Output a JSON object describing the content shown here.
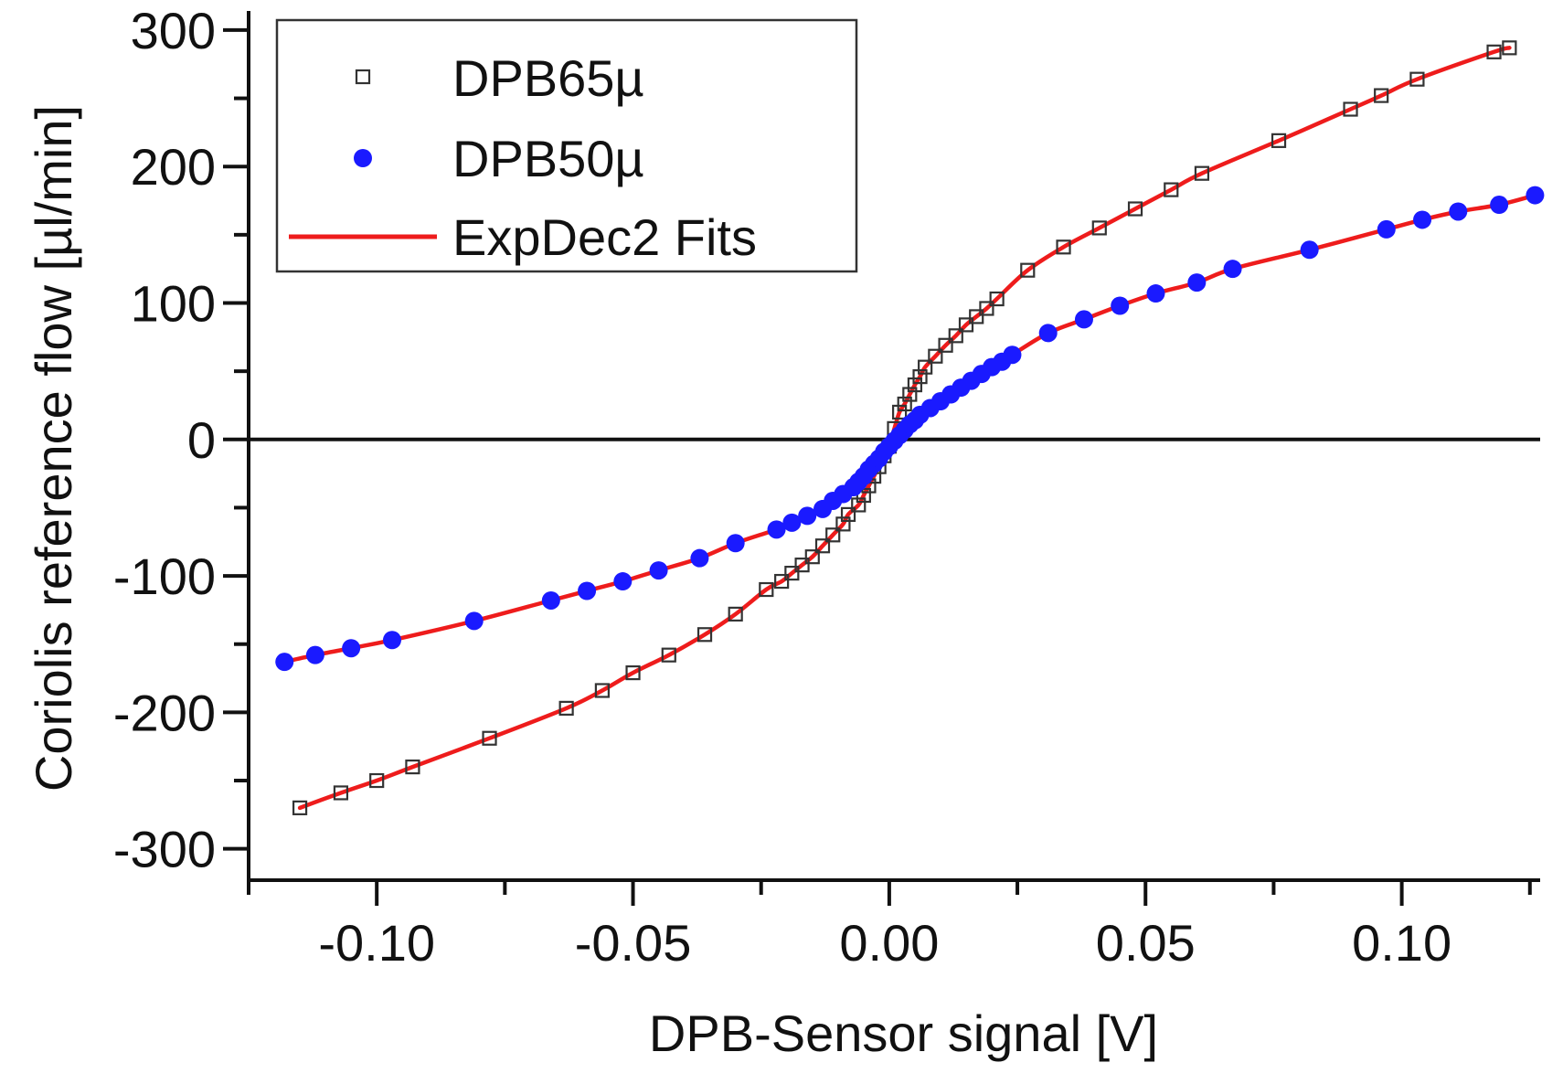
{
  "chart_data": {
    "type": "scatter",
    "title": "",
    "xlabel": "DPB-Sensor signal [V]",
    "ylabel": "Coriolis reference flow [µl/min]",
    "xlim": [
      -0.125,
      0.127
    ],
    "ylim": [
      -323,
      310
    ],
    "xticks": [
      -0.1,
      -0.05,
      0.0,
      0.05,
      0.1
    ],
    "xtick_labels": [
      "-0.10",
      "-0.05",
      "0.00",
      "0.05",
      "0.10"
    ],
    "yticks": [
      -300,
      -200,
      -100,
      0,
      100,
      200,
      300
    ],
    "ytick_labels": [
      "-300",
      "-200",
      "-100",
      "0",
      "100",
      "200",
      "300"
    ],
    "grid": false,
    "zero_line": true,
    "legend_position": "top-left",
    "series": [
      {
        "name": "DPB65µ",
        "marker": "open-square",
        "color": "#333333",
        "x": [
          -0.115,
          -0.107,
          -0.1,
          -0.093,
          -0.078,
          -0.063,
          -0.056,
          -0.05,
          -0.043,
          -0.036,
          -0.03,
          -0.024,
          -0.021,
          -0.019,
          -0.017,
          -0.015,
          -0.013,
          -0.011,
          -0.009,
          -0.008,
          -0.006,
          -0.005,
          -0.004,
          -0.003,
          -0.002,
          -0.001,
          0.0,
          0.001,
          0.002,
          0.003,
          0.004,
          0.005,
          0.006,
          0.007,
          0.009,
          0.011,
          0.013,
          0.015,
          0.017,
          0.019,
          0.021,
          0.027,
          0.034,
          0.041,
          0.048,
          0.055,
          0.061,
          0.076,
          0.09,
          0.096,
          0.103,
          0.118,
          0.121
        ],
        "y": [
          -270,
          -259,
          -250,
          -240,
          -219,
          -197,
          -184,
          -171,
          -158,
          -143,
          -128,
          -110,
          -104,
          -98,
          -92,
          -86,
          -78,
          -70,
          -62,
          -55,
          -48,
          -41,
          -34,
          -27,
          -20,
          -12,
          -5,
          8,
          20,
          26,
          33,
          40,
          46,
          53,
          61,
          69,
          76,
          84,
          90,
          96,
          103,
          124,
          141,
          155,
          169,
          183,
          195,
          219,
          242,
          252,
          264,
          284,
          287
        ]
      },
      {
        "name": "DPB50µ",
        "marker": "filled-circle",
        "color": "#1a1aff",
        "x": [
          -0.118,
          -0.112,
          -0.105,
          -0.097,
          -0.081,
          -0.066,
          -0.059,
          -0.052,
          -0.045,
          -0.037,
          -0.03,
          -0.022,
          -0.019,
          -0.016,
          -0.013,
          -0.011,
          -0.009,
          -0.007,
          -0.006,
          -0.005,
          -0.004,
          -0.003,
          -0.002,
          -0.001,
          0.0,
          0.001,
          0.002,
          0.003,
          0.004,
          0.005,
          0.006,
          0.008,
          0.01,
          0.012,
          0.014,
          0.016,
          0.018,
          0.02,
          0.022,
          0.024,
          0.031,
          0.038,
          0.045,
          0.052,
          0.06,
          0.067,
          0.082,
          0.097,
          0.104,
          0.111,
          0.119,
          0.126
        ],
        "y": [
          -163,
          -158,
          -153,
          -147,
          -133,
          -118,
          -111,
          -104,
          -96,
          -87,
          -76,
          -66,
          -61,
          -56,
          -51,
          -45,
          -40,
          -35,
          -31,
          -27,
          -22,
          -18,
          -14,
          -9,
          -5,
          -1,
          3,
          7,
          11,
          14,
          18,
          23,
          28,
          33,
          38,
          43,
          48,
          53,
          57,
          62,
          78,
          88,
          98,
          107,
          115,
          125,
          139,
          154,
          161,
          167,
          172,
          179
        ]
      },
      {
        "name": "ExpDec2 Fits",
        "marker": "line",
        "color": "#ee1c1c"
      }
    ]
  }
}
